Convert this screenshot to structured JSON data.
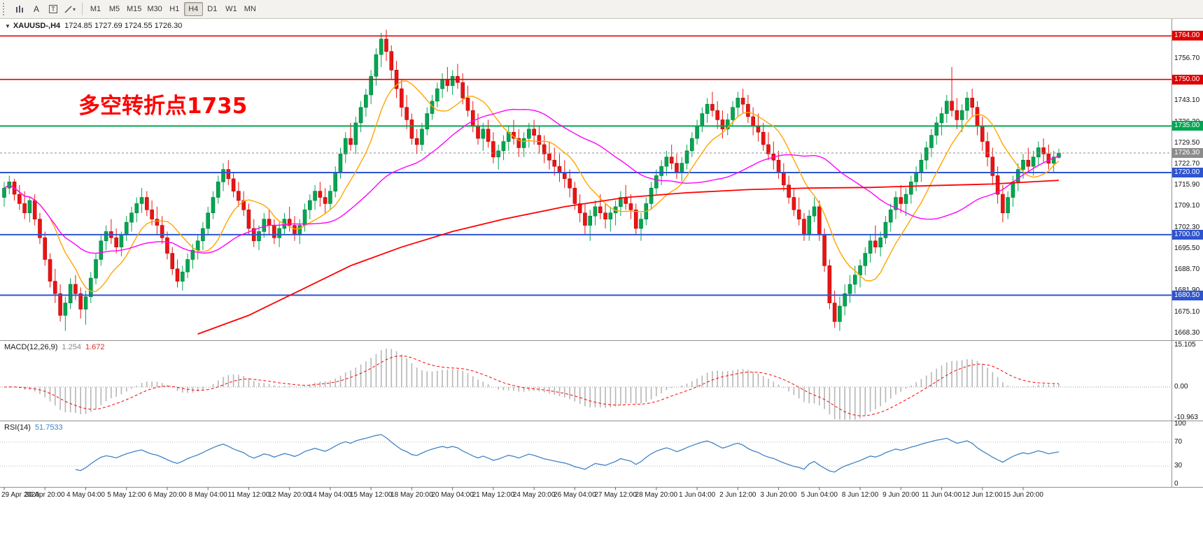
{
  "toolbar": {
    "timeframes": [
      "M1",
      "M5",
      "M15",
      "M30",
      "H1",
      "H4",
      "D1",
      "W1",
      "MN"
    ],
    "active_timeframe": "H4",
    "icons": {
      "a_label": "A",
      "t_label": "T",
      "caret": "▾"
    }
  },
  "chart": {
    "symbol_line": {
      "dropdown_arrow": "▼",
      "symbol": "XAUUSD-,H4",
      "ohlc_text": "1724.85 1727.69 1724.55 1726.30"
    },
    "annotation": {
      "text": "多空转折点1735",
      "color": "#ff0000"
    }
  },
  "indicator_labels": {
    "macd": {
      "name": "MACD(12,26,9)",
      "value1": "1.254",
      "value2": "1.672"
    },
    "rsi": {
      "name": "RSI(14)",
      "value1": "51.7533"
    }
  },
  "colors": {
    "bull": "#00a651",
    "bull_border": "#067a3c",
    "bear": "#ec1313",
    "bear_border": "#a80e0e",
    "ma_fast": "#ffa500",
    "ma_mid": "#ff00ff",
    "ma_slow": "#ff0000",
    "level_red": "#e00000",
    "level_green": "#00a651",
    "level_blue": "#2f54cf",
    "current": "#8c8c8c",
    "macd_hist": "#b6b6b6",
    "macd_signal": "#ff0000",
    "rsi": "#3f83c6"
  },
  "chart_data": {
    "type": "candlestick",
    "symbol": "XAUUSD-",
    "timeframe": "H4",
    "last_ohlc": {
      "open": 1724.85,
      "high": 1727.69,
      "low": 1724.55,
      "close": 1726.3
    },
    "y_range": [
      1666.0,
      1769.5
    ],
    "price_ticks": [
      1756.7,
      1743.1,
      1736.3,
      1729.5,
      1722.7,
      1715.9,
      1709.1,
      1702.3,
      1695.5,
      1688.7,
      1681.9,
      1675.1,
      1668.3
    ],
    "current_price": 1726.3,
    "levels": [
      {
        "price": 1764.0,
        "color": "#e00000",
        "width": 1.6
      },
      {
        "price": 1750.0,
        "color": "#e00000",
        "width": 1.6
      },
      {
        "price": 1735.0,
        "color": "#00a651",
        "width": 2
      },
      {
        "price": 1720.0,
        "color": "#2f54cf",
        "width": 2
      },
      {
        "price": 1700.0,
        "color": "#2f54cf",
        "width": 2
      },
      {
        "price": 1680.5,
        "color": "#2f54cf",
        "width": 2
      }
    ],
    "moving_averages": {
      "fast_sma": 10,
      "mid_sma": 34,
      "slow_anchors": [
        [
          38,
          1668
        ],
        [
          48,
          1674
        ],
        [
          58,
          1682
        ],
        [
          68,
          1690
        ],
        [
          78,
          1696
        ],
        [
          88,
          1701
        ],
        [
          98,
          1705
        ],
        [
          110,
          1709
        ],
        [
          122,
          1712
        ],
        [
          134,
          1713.5
        ],
        [
          146,
          1714.5
        ],
        [
          158,
          1715
        ],
        [
          170,
          1715.2
        ],
        [
          182,
          1715.8
        ],
        [
          194,
          1716.3
        ],
        [
          207,
          1717.5
        ]
      ]
    },
    "time_labels": [
      "29 Apr 2020",
      "30 Apr 20:00",
      "4 May 04:00",
      "5 May 12:00",
      "6 May 20:00",
      "8 May 04:00",
      "11 May 12:00",
      "12 May 20:00",
      "14 May 04:00",
      "15 May 12:00",
      "18 May 20:00",
      "20 May 04:00",
      "21 May 12:00",
      "24 May 20:00",
      "26 May 04:00",
      "27 May 12:00",
      "28 May 20:00",
      "1 Jun 04:00",
      "2 Jun 12:00",
      "3 Jun 20:00",
      "5 Jun 04:00",
      "8 Jun 12:00",
      "9 Jun 20:00",
      "11 Jun 04:00",
      "12 Jun 12:00",
      "15 Jun 20:00"
    ],
    "candles": [
      [
        1712,
        1717,
        1709,
        1715
      ],
      [
        1715,
        1719,
        1713,
        1717
      ],
      [
        1717,
        1718,
        1711,
        1713
      ],
      [
        1713,
        1716,
        1708,
        1710
      ],
      [
        1710,
        1714,
        1705,
        1707
      ],
      [
        1707,
        1712,
        1704,
        1711
      ],
      [
        1711,
        1713,
        1703,
        1705
      ],
      [
        1705,
        1707,
        1697,
        1699
      ],
      [
        1699,
        1701,
        1690,
        1692
      ],
      [
        1692,
        1694,
        1683,
        1685
      ],
      [
        1685,
        1689,
        1678,
        1681
      ],
      [
        1681,
        1684,
        1672,
        1674
      ],
      [
        1674,
        1680,
        1669,
        1678
      ],
      [
        1678,
        1686,
        1676,
        1684
      ],
      [
        1684,
        1687,
        1679,
        1681
      ],
      [
        1681,
        1683,
        1673,
        1676
      ],
      [
        1676,
        1682,
        1671,
        1680
      ],
      [
        1680,
        1688,
        1678,
        1686
      ],
      [
        1686,
        1694,
        1684,
        1692
      ],
      [
        1692,
        1700,
        1690,
        1698
      ],
      [
        1698,
        1703,
        1695,
        1701
      ],
      [
        1701,
        1705,
        1697,
        1699
      ],
      [
        1699,
        1702,
        1694,
        1696
      ],
      [
        1696,
        1701,
        1693,
        1700
      ],
      [
        1700,
        1706,
        1698,
        1704
      ],
      [
        1704,
        1709,
        1701,
        1707
      ],
      [
        1707,
        1712,
        1704,
        1710
      ],
      [
        1710,
        1715,
        1707,
        1712
      ],
      [
        1712,
        1714,
        1706,
        1708
      ],
      [
        1708,
        1711,
        1703,
        1705
      ],
      [
        1705,
        1709,
        1700,
        1703
      ],
      [
        1703,
        1706,
        1697,
        1699
      ],
      [
        1699,
        1701,
        1692,
        1694
      ],
      [
        1694,
        1696,
        1687,
        1689
      ],
      [
        1689,
        1692,
        1683,
        1685
      ],
      [
        1685,
        1690,
        1682,
        1688
      ],
      [
        1688,
        1694,
        1686,
        1692
      ],
      [
        1692,
        1697,
        1689,
        1695
      ],
      [
        1695,
        1700,
        1692,
        1698
      ],
      [
        1698,
        1704,
        1695,
        1702
      ],
      [
        1702,
        1709,
        1700,
        1707
      ],
      [
        1707,
        1714,
        1705,
        1712
      ],
      [
        1712,
        1719,
        1710,
        1717
      ],
      [
        1717,
        1723,
        1714,
        1721
      ],
      [
        1721,
        1724,
        1716,
        1718
      ],
      [
        1718,
        1720,
        1712,
        1714
      ],
      [
        1714,
        1717,
        1709,
        1711
      ],
      [
        1711,
        1714,
        1706,
        1708
      ],
      [
        1708,
        1710,
        1700,
        1702
      ],
      [
        1702,
        1705,
        1696,
        1698
      ],
      [
        1698,
        1703,
        1695,
        1701
      ],
      [
        1701,
        1707,
        1699,
        1705
      ],
      [
        1705,
        1708,
        1700,
        1703
      ],
      [
        1703,
        1705,
        1697,
        1699
      ],
      [
        1699,
        1704,
        1696,
        1702
      ],
      [
        1702,
        1707,
        1700,
        1705
      ],
      [
        1705,
        1709,
        1701,
        1703
      ],
      [
        1703,
        1706,
        1698,
        1700
      ],
      [
        1700,
        1705,
        1697,
        1703
      ],
      [
        1703,
        1710,
        1701,
        1708
      ],
      [
        1708,
        1713,
        1705,
        1711
      ],
      [
        1711,
        1716,
        1708,
        1714
      ],
      [
        1714,
        1717,
        1709,
        1712
      ],
      [
        1712,
        1715,
        1707,
        1710
      ],
      [
        1710,
        1716,
        1708,
        1714
      ],
      [
        1714,
        1722,
        1712,
        1720
      ],
      [
        1720,
        1728,
        1718,
        1726
      ],
      [
        1726,
        1733,
        1723,
        1731
      ],
      [
        1731,
        1736,
        1727,
        1729
      ],
      [
        1729,
        1738,
        1726,
        1736
      ],
      [
        1736,
        1743,
        1733,
        1741
      ],
      [
        1741,
        1747,
        1738,
        1745
      ],
      [
        1745,
        1753,
        1742,
        1751
      ],
      [
        1751,
        1760,
        1748,
        1758
      ],
      [
        1758,
        1765,
        1754,
        1763
      ],
      [
        1763,
        1766,
        1756,
        1759
      ],
      [
        1759,
        1761,
        1750,
        1753
      ],
      [
        1753,
        1756,
        1744,
        1747
      ],
      [
        1747,
        1750,
        1738,
        1741
      ],
      [
        1741,
        1745,
        1734,
        1737
      ],
      [
        1737,
        1739,
        1729,
        1731
      ],
      [
        1731,
        1734,
        1726,
        1729
      ],
      [
        1729,
        1736,
        1727,
        1734
      ],
      [
        1734,
        1741,
        1732,
        1739
      ],
      [
        1739,
        1745,
        1737,
        1743
      ],
      [
        1743,
        1749,
        1741,
        1747
      ],
      [
        1747,
        1752,
        1744,
        1750
      ],
      [
        1750,
        1754,
        1746,
        1748
      ],
      [
        1748,
        1753,
        1745,
        1751
      ],
      [
        1751,
        1755,
        1747,
        1749
      ],
      [
        1749,
        1752,
        1742,
        1744
      ],
      [
        1744,
        1748,
        1738,
        1740
      ],
      [
        1740,
        1743,
        1733,
        1735
      ],
      [
        1735,
        1739,
        1729,
        1731
      ],
      [
        1731,
        1736,
        1727,
        1734
      ],
      [
        1734,
        1737,
        1728,
        1730
      ],
      [
        1730,
        1733,
        1723,
        1725
      ],
      [
        1725,
        1729,
        1721,
        1727
      ],
      [
        1727,
        1732,
        1724,
        1730
      ],
      [
        1730,
        1735,
        1727,
        1733
      ],
      [
        1733,
        1737,
        1729,
        1731
      ],
      [
        1731,
        1734,
        1725,
        1728
      ],
      [
        1728,
        1733,
        1725,
        1731
      ],
      [
        1731,
        1736,
        1728,
        1734
      ],
      [
        1734,
        1737,
        1729,
        1732
      ],
      [
        1732,
        1735,
        1726,
        1729
      ],
      [
        1729,
        1732,
        1723,
        1726
      ],
      [
        1726,
        1730,
        1721,
        1724
      ],
      [
        1724,
        1728,
        1719,
        1722
      ],
      [
        1722,
        1726,
        1717,
        1720
      ],
      [
        1720,
        1724,
        1715,
        1718
      ],
      [
        1718,
        1721,
        1712,
        1715
      ],
      [
        1715,
        1717,
        1708,
        1710
      ],
      [
        1710,
        1713,
        1704,
        1707
      ],
      [
        1707,
        1710,
        1700,
        1703
      ],
      [
        1703,
        1708,
        1698,
        1706
      ],
      [
        1706,
        1711,
        1703,
        1709
      ],
      [
        1709,
        1713,
        1705,
        1707
      ],
      [
        1707,
        1710,
        1702,
        1705
      ],
      [
        1705,
        1709,
        1701,
        1707
      ],
      [
        1707,
        1711,
        1703,
        1709
      ],
      [
        1709,
        1714,
        1706,
        1712
      ],
      [
        1712,
        1716,
        1708,
        1710
      ],
      [
        1710,
        1713,
        1705,
        1708
      ],
      [
        1708,
        1710,
        1700,
        1702
      ],
      [
        1702,
        1707,
        1698,
        1705
      ],
      [
        1705,
        1712,
        1703,
        1710
      ],
      [
        1710,
        1717,
        1708,
        1715
      ],
      [
        1715,
        1721,
        1713,
        1719
      ],
      [
        1719,
        1724,
        1716,
        1722
      ],
      [
        1722,
        1727,
        1719,
        1725
      ],
      [
        1725,
        1729,
        1721,
        1723
      ],
      [
        1723,
        1726,
        1718,
        1720
      ],
      [
        1720,
        1725,
        1717,
        1723
      ],
      [
        1723,
        1729,
        1721,
        1727
      ],
      [
        1727,
        1733,
        1725,
        1731
      ],
      [
        1731,
        1737,
        1729,
        1735
      ],
      [
        1735,
        1741,
        1733,
        1739
      ],
      [
        1739,
        1744,
        1736,
        1742
      ],
      [
        1742,
        1746,
        1738,
        1740
      ],
      [
        1740,
        1743,
        1734,
        1737
      ],
      [
        1737,
        1740,
        1731,
        1734
      ],
      [
        1734,
        1739,
        1732,
        1737
      ],
      [
        1737,
        1743,
        1735,
        1741
      ],
      [
        1741,
        1746,
        1738,
        1744
      ],
      [
        1744,
        1747,
        1739,
        1742
      ],
      [
        1742,
        1745,
        1736,
        1738
      ],
      [
        1738,
        1741,
        1732,
        1735
      ],
      [
        1735,
        1739,
        1730,
        1733
      ],
      [
        1733,
        1736,
        1727,
        1729
      ],
      [
        1729,
        1733,
        1724,
        1726
      ],
      [
        1726,
        1730,
        1721,
        1724
      ],
      [
        1724,
        1727,
        1718,
        1720
      ],
      [
        1720,
        1723,
        1714,
        1716
      ],
      [
        1716,
        1719,
        1710,
        1712
      ],
      [
        1712,
        1715,
        1706,
        1708
      ],
      [
        1708,
        1712,
        1703,
        1705
      ],
      [
        1705,
        1707,
        1698,
        1700
      ],
      [
        1700,
        1708,
        1698,
        1706
      ],
      [
        1706,
        1712,
        1704,
        1709
      ],
      [
        1709,
        1711,
        1698,
        1700
      ],
      [
        1700,
        1702,
        1688,
        1690
      ],
      [
        1690,
        1692,
        1676,
        1678
      ],
      [
        1678,
        1682,
        1670,
        1672
      ],
      [
        1672,
        1680,
        1669,
        1677
      ],
      [
        1677,
        1684,
        1674,
        1681
      ],
      [
        1681,
        1687,
        1678,
        1684
      ],
      [
        1684,
        1690,
        1681,
        1687
      ],
      [
        1687,
        1692,
        1683,
        1690
      ],
      [
        1690,
        1696,
        1687,
        1694
      ],
      [
        1694,
        1700,
        1691,
        1698
      ],
      [
        1698,
        1703,
        1694,
        1696
      ],
      [
        1696,
        1701,
        1693,
        1699
      ],
      [
        1699,
        1706,
        1697,
        1704
      ],
      [
        1704,
        1710,
        1701,
        1708
      ],
      [
        1708,
        1714,
        1705,
        1712
      ],
      [
        1712,
        1716,
        1707,
        1710
      ],
      [
        1710,
        1715,
        1706,
        1713
      ],
      [
        1713,
        1719,
        1710,
        1717
      ],
      [
        1717,
        1722,
        1714,
        1720
      ],
      [
        1720,
        1726,
        1717,
        1724
      ],
      [
        1724,
        1730,
        1721,
        1728
      ],
      [
        1728,
        1734,
        1725,
        1732
      ],
      [
        1732,
        1738,
        1729,
        1736
      ],
      [
        1736,
        1741,
        1732,
        1739
      ],
      [
        1739,
        1745,
        1736,
        1743
      ],
      [
        1743,
        1754,
        1738,
        1740
      ],
      [
        1740,
        1744,
        1734,
        1737
      ],
      [
        1737,
        1742,
        1733,
        1740
      ],
      [
        1740,
        1746,
        1737,
        1744
      ],
      [
        1744,
        1747,
        1738,
        1741
      ],
      [
        1741,
        1743,
        1732,
        1735
      ],
      [
        1735,
        1738,
        1727,
        1730
      ],
      [
        1730,
        1733,
        1722,
        1725
      ],
      [
        1725,
        1728,
        1716,
        1719
      ],
      [
        1719,
        1722,
        1710,
        1713
      ],
      [
        1713,
        1716,
        1704,
        1707
      ],
      [
        1707,
        1714,
        1705,
        1712
      ],
      [
        1712,
        1719,
        1709,
        1717
      ],
      [
        1717,
        1723,
        1714,
        1721
      ],
      [
        1721,
        1726,
        1718,
        1724
      ],
      [
        1724,
        1728,
        1720,
        1722
      ],
      [
        1722,
        1727,
        1719,
        1725
      ],
      [
        1725,
        1730,
        1722,
        1728
      ],
      [
        1728,
        1731,
        1723,
        1726
      ],
      [
        1726,
        1729,
        1721,
        1723
      ],
      [
        1723,
        1727,
        1720,
        1725
      ],
      [
        1724.85,
        1727.69,
        1724.55,
        1726.3
      ]
    ],
    "indicators": [
      {
        "name": "MACD",
        "params": "12,26,9",
        "values": [
          1.254,
          1.672
        ],
        "ticks": [
          {
            "label": "15.105",
            "value": 15.105
          },
          {
            "label": "0.00",
            "value": 0
          },
          {
            "label": "-10.963",
            "value": -10.963
          }
        ]
      },
      {
        "name": "RSI",
        "params": "14",
        "values": [
          51.7533
        ],
        "levels": [
          70,
          30
        ],
        "ticks": [
          {
            "label": "100",
            "value": 100
          },
          {
            "label": "70",
            "value": 70
          },
          {
            "label": "30",
            "value": 30
          },
          {
            "label": "0",
            "value": 0
          }
        ]
      }
    ]
  }
}
